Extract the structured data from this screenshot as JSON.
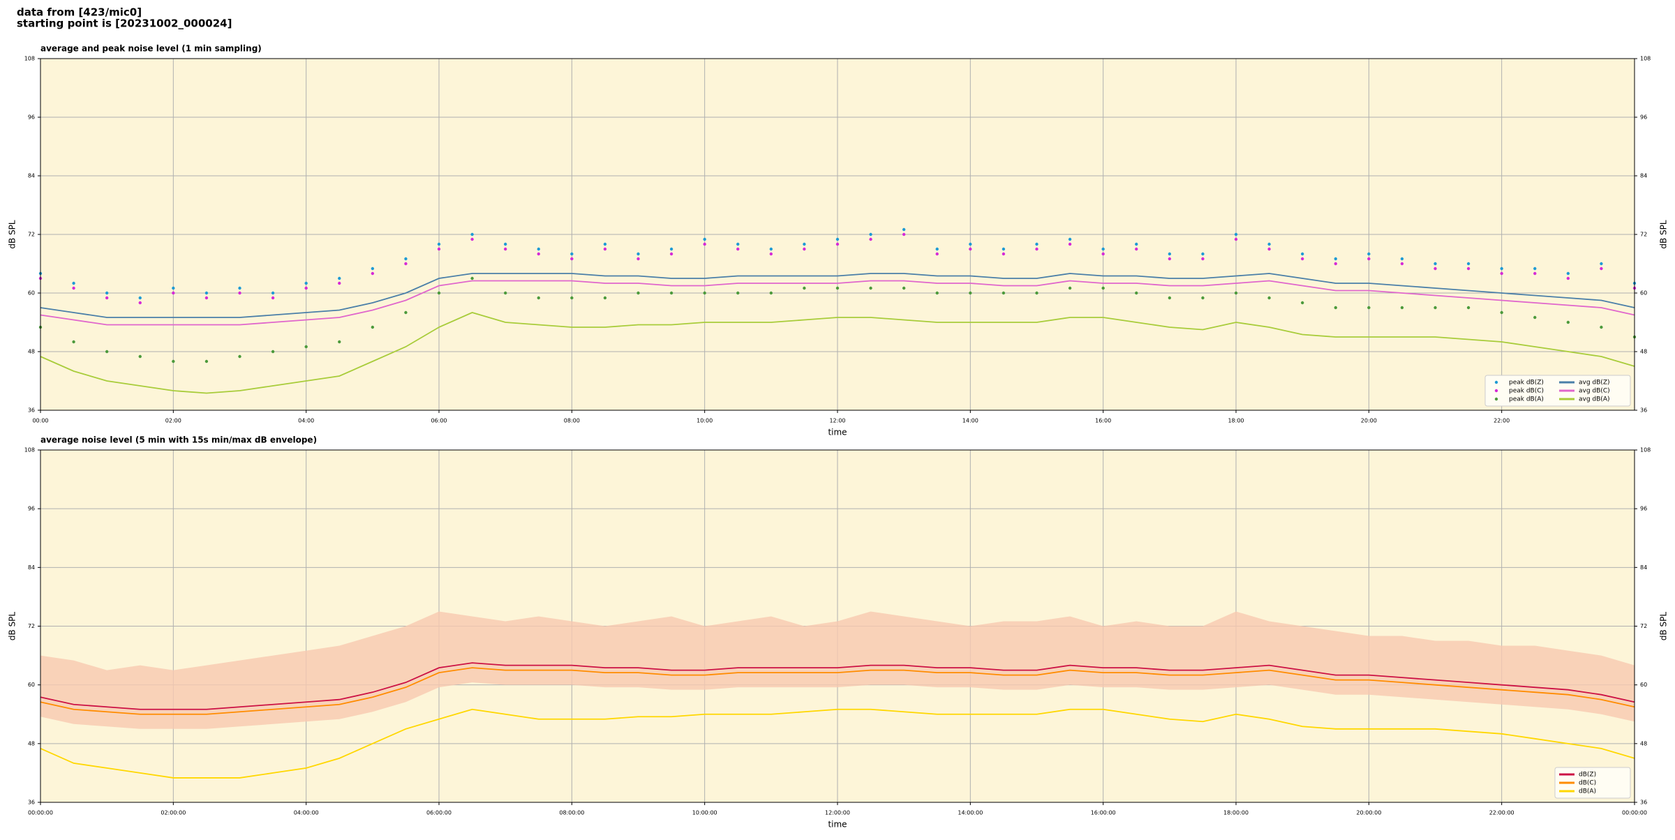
{
  "header": {
    "line1": "data from [423/mic0]",
    "line2": "starting point is [20231002_000024]"
  },
  "chart_data": [
    {
      "type": "line",
      "title": "average and peak noise level (1 min sampling)",
      "xlabel": "time",
      "ylabel": "dB SPL",
      "y2label": "dB SPL",
      "x": [
        0,
        30,
        60,
        90,
        120,
        150,
        180,
        210,
        240,
        270,
        300,
        330,
        360,
        390,
        420,
        450,
        480,
        510,
        540,
        570,
        600,
        630,
        660,
        690,
        720,
        750,
        780,
        810,
        840,
        870,
        900,
        930,
        960,
        990,
        1020,
        1050,
        1080,
        1110,
        1140,
        1170,
        1200,
        1230,
        1260,
        1290,
        1320,
        1350,
        1380,
        1410,
        1440
      ],
      "xlim": [
        0,
        1440
      ],
      "xticks": [
        {
          "value": 0,
          "label": "00:00"
        },
        {
          "value": 120,
          "label": "02:00"
        },
        {
          "value": 240,
          "label": "04:00"
        },
        {
          "value": 360,
          "label": "06:00"
        },
        {
          "value": 480,
          "label": "08:00"
        },
        {
          "value": 600,
          "label": "10:00"
        },
        {
          "value": 720,
          "label": "12:00"
        },
        {
          "value": 840,
          "label": "14:00"
        },
        {
          "value": 960,
          "label": "16:00"
        },
        {
          "value": 1080,
          "label": "18:00"
        },
        {
          "value": 1200,
          "label": "20:00"
        },
        {
          "value": 1320,
          "label": "22:00"
        }
      ],
      "ylim": [
        36,
        108
      ],
      "yticks": [
        36,
        48,
        60,
        72,
        84,
        96,
        108
      ],
      "y2lim": [
        36,
        108
      ],
      "y2ticks": [
        36,
        48,
        60,
        72,
        84,
        96,
        108
      ],
      "grid": true,
      "background": "#fdf5d8",
      "legend": "lower right",
      "legend_columns": 2,
      "series": [
        {
          "name": "peak dB(Z)",
          "style": "scatter",
          "color": "#1f9bd4",
          "values": [
            64,
            62,
            60,
            59,
            61,
            60,
            61,
            60,
            62,
            63,
            65,
            67,
            70,
            72,
            70,
            69,
            68,
            70,
            68,
            69,
            71,
            70,
            69,
            70,
            71,
            72,
            73,
            69,
            70,
            69,
            70,
            71,
            69,
            70,
            68,
            68,
            72,
            70,
            68,
            67,
            68,
            67,
            66,
            66,
            65,
            65,
            64,
            66,
            62
          ]
        },
        {
          "name": "peak dB(C)",
          "style": "scatter",
          "color": "#d62ad6",
          "values": [
            63,
            61,
            59,
            58,
            60,
            59,
            60,
            59,
            61,
            62,
            64,
            66,
            69,
            71,
            69,
            68,
            67,
            69,
            67,
            68,
            70,
            69,
            68,
            69,
            70,
            71,
            72,
            68,
            69,
            68,
            69,
            70,
            68,
            69,
            67,
            67,
            71,
            69,
            67,
            66,
            67,
            66,
            65,
            65,
            64,
            64,
            63,
            65,
            61
          ]
        },
        {
          "name": "peak dB(A)",
          "style": "scatter",
          "color": "#4c9a3c",
          "values": [
            53,
            50,
            48,
            47,
            46,
            46,
            47,
            48,
            49,
            50,
            53,
            56,
            60,
            63,
            60,
            59,
            59,
            59,
            60,
            60,
            60,
            60,
            60,
            61,
            61,
            61,
            61,
            60,
            60,
            60,
            60,
            61,
            61,
            60,
            59,
            59,
            60,
            59,
            58,
            57,
            57,
            57,
            57,
            57,
            56,
            55,
            54,
            53,
            51
          ]
        },
        {
          "name": "avg dB(Z)",
          "style": "line",
          "color": "#4a7fa8",
          "values": [
            57,
            56,
            55,
            55,
            55,
            55,
            55,
            55.5,
            56,
            56.5,
            58,
            60,
            63,
            64,
            64,
            64,
            64,
            63.5,
            63.5,
            63,
            63,
            63.5,
            63.5,
            63.5,
            63.5,
            64,
            64,
            63.5,
            63.5,
            63,
            63,
            64,
            63.5,
            63.5,
            63,
            63,
            63.5,
            64,
            63,
            62,
            62,
            61.5,
            61,
            60.5,
            60,
            59.5,
            59,
            58.5,
            57
          ]
        },
        {
          "name": "avg dB(C)",
          "style": "line",
          "color": "#e066cc",
          "values": [
            55.5,
            54.5,
            53.5,
            53.5,
            53.5,
            53.5,
            53.5,
            54,
            54.5,
            55,
            56.5,
            58.5,
            61.5,
            62.5,
            62.5,
            62.5,
            62.5,
            62,
            62,
            61.5,
            61.5,
            62,
            62,
            62,
            62,
            62.5,
            62.5,
            62,
            62,
            61.5,
            61.5,
            62.5,
            62,
            62,
            61.5,
            61.5,
            62,
            62.5,
            61.5,
            60.5,
            60.5,
            60,
            59.5,
            59,
            58.5,
            58,
            57.5,
            57,
            55.5
          ]
        },
        {
          "name": "avg dB(A)",
          "style": "line",
          "color": "#a8cc3a",
          "values": [
            47,
            44,
            42,
            41,
            40,
            39.5,
            40,
            41,
            42,
            43,
            46,
            49,
            53,
            56,
            54,
            53.5,
            53,
            53,
            53.5,
            53.5,
            54,
            54,
            54,
            54.5,
            55,
            55,
            54.5,
            54,
            54,
            54,
            54,
            55,
            55,
            54,
            53,
            52.5,
            54,
            53,
            51.5,
            51,
            51,
            51,
            51,
            50.5,
            50,
            49,
            48,
            47,
            45
          ]
        }
      ]
    },
    {
      "type": "line",
      "title": "average noise level (5 min with 15s min/max dB envelope)",
      "xlabel": "time",
      "ylabel": "dB SPL",
      "y2label": "dB SPL",
      "x": [
        0,
        30,
        60,
        90,
        120,
        150,
        180,
        210,
        240,
        270,
        300,
        330,
        360,
        390,
        420,
        450,
        480,
        510,
        540,
        570,
        600,
        630,
        660,
        690,
        720,
        750,
        780,
        810,
        840,
        870,
        900,
        930,
        960,
        990,
        1020,
        1050,
        1080,
        1110,
        1140,
        1170,
        1200,
        1230,
        1260,
        1290,
        1320,
        1350,
        1380,
        1410,
        1440
      ],
      "xlim": [
        0,
        1440
      ],
      "xticks": [
        {
          "value": 0,
          "label": "00:00:00"
        },
        {
          "value": 120,
          "label": "02:00:00"
        },
        {
          "value": 240,
          "label": "04:00:00"
        },
        {
          "value": 360,
          "label": "06:00:00"
        },
        {
          "value": 480,
          "label": "08:00:00"
        },
        {
          "value": 600,
          "label": "10:00:00"
        },
        {
          "value": 720,
          "label": "12:00:00"
        },
        {
          "value": 840,
          "label": "14:00:00"
        },
        {
          "value": 960,
          "label": "16:00:00"
        },
        {
          "value": 1080,
          "label": "18:00:00"
        },
        {
          "value": 1200,
          "label": "20:00:00"
        },
        {
          "value": 1320,
          "label": "22:00:00"
        },
        {
          "value": 1440,
          "label": "00:00:00"
        }
      ],
      "ylim": [
        36,
        108
      ],
      "yticks": [
        36,
        48,
        60,
        72,
        84,
        96,
        108
      ],
      "y2lim": [
        36,
        108
      ],
      "y2ticks": [
        36,
        48,
        60,
        72,
        84,
        96,
        108
      ],
      "grid": true,
      "background": "#fdf5d8",
      "legend": "lower right",
      "legend_columns": 1,
      "envelope": {
        "color": "#f7c9b0",
        "lower": [
          53.5,
          52,
          51.5,
          51,
          51,
          51,
          51.5,
          52,
          52.5,
          53,
          54.5,
          56.5,
          59.5,
          60.5,
          60,
          60,
          60,
          59.5,
          59.5,
          59,
          59,
          59.5,
          59.5,
          59.5,
          59.5,
          60,
          60,
          59.5,
          59.5,
          59,
          59,
          60,
          59.5,
          59.5,
          59,
          59,
          59.5,
          60,
          59,
          58,
          58,
          57.5,
          57,
          56.5,
          56,
          55.5,
          55,
          54,
          52.5
        ],
        "upper": [
          66,
          65,
          63,
          64,
          63,
          64,
          65,
          66,
          67,
          68,
          70,
          72,
          75,
          74,
          73,
          74,
          73,
          72,
          73,
          74,
          72,
          73,
          74,
          72,
          73,
          75,
          74,
          73,
          72,
          73,
          73,
          74,
          72,
          73,
          72,
          72,
          75,
          73,
          72,
          71,
          70,
          70,
          69,
          69,
          68,
          68,
          67,
          66,
          64
        ]
      },
      "series": [
        {
          "name": "dB(Z)",
          "style": "line",
          "color": "#cc1144",
          "values": [
            57.5,
            56,
            55.5,
            55,
            55,
            55,
            55.5,
            56,
            56.5,
            57,
            58.5,
            60.5,
            63.5,
            64.5,
            64,
            64,
            64,
            63.5,
            63.5,
            63,
            63,
            63.5,
            63.5,
            63.5,
            63.5,
            64,
            64,
            63.5,
            63.5,
            63,
            63,
            64,
            63.5,
            63.5,
            63,
            63,
            63.5,
            64,
            63,
            62,
            62,
            61.5,
            61,
            60.5,
            60,
            59.5,
            59,
            58,
            56.5
          ]
        },
        {
          "name": "dB(C)",
          "style": "line",
          "color": "#ff8c00",
          "values": [
            56.5,
            55,
            54.5,
            54,
            54,
            54,
            54.5,
            55,
            55.5,
            56,
            57.5,
            59.5,
            62.5,
            63.5,
            63,
            63,
            63,
            62.5,
            62.5,
            62,
            62,
            62.5,
            62.5,
            62.5,
            62.5,
            63,
            63,
            62.5,
            62.5,
            62,
            62,
            63,
            62.5,
            62.5,
            62,
            62,
            62.5,
            63,
            62,
            61,
            61,
            60.5,
            60,
            59.5,
            59,
            58.5,
            58,
            57,
            55.5
          ]
        },
        {
          "name": "dB(A)",
          "style": "line",
          "color": "#ffd700",
          "values": [
            47,
            44,
            43,
            42,
            41,
            41,
            41,
            42,
            43,
            45,
            48,
            51,
            53,
            55,
            54,
            53,
            53,
            53,
            53.5,
            53.5,
            54,
            54,
            54,
            54.5,
            55,
            55,
            54.5,
            54,
            54,
            54,
            54,
            55,
            55,
            54,
            53,
            52.5,
            54,
            53,
            51.5,
            51,
            51,
            51,
            51,
            50.5,
            50,
            49,
            48,
            47,
            45
          ]
        }
      ]
    }
  ]
}
